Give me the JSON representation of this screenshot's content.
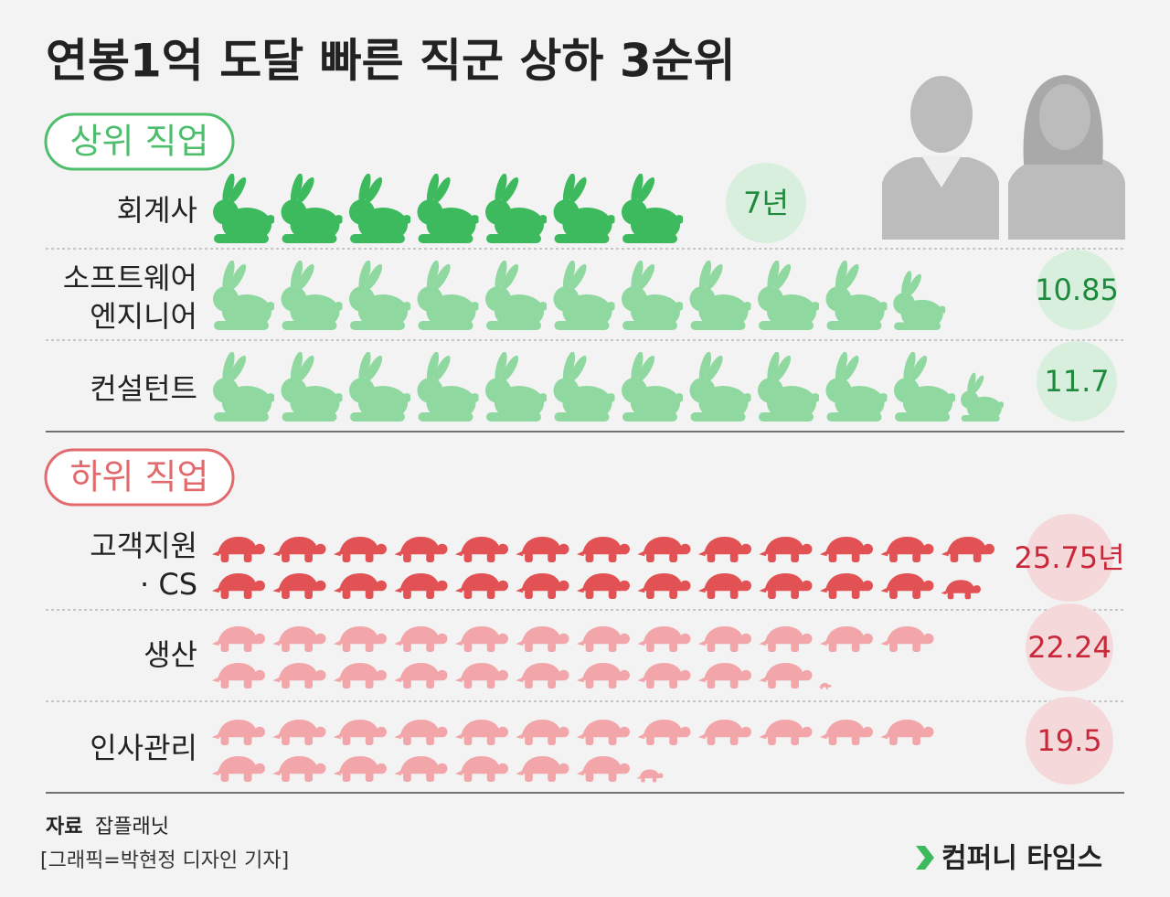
{
  "title": "연봉1억 도달 빠른 직군 상하 3순위",
  "chart_data": [
    {
      "type": "pictogram",
      "label": "상위 직업",
      "icon": "rabbit",
      "color": "#4cbe6c",
      "value_color": "#1f8a3e",
      "circle_color": "#d9efdd",
      "categories": [
        "회계사",
        "소프트웨어\n엔지니어",
        "컨설턴트"
      ],
      "values": [
        7,
        10.85,
        11.7
      ],
      "value_labels": [
        "7년",
        "10.85",
        "11.7"
      ],
      "colors": [
        "#3dba5e",
        "#8fd8a0",
        "#8fd8a0"
      ]
    },
    {
      "type": "pictogram",
      "label": "하위 직업",
      "icon": "turtle",
      "color": "#e26a6d",
      "value_color": "#c8283a",
      "circle_color": "#f5d9da",
      "categories": [
        "고객지원\n· CS",
        "생산",
        "인사관리"
      ],
      "values": [
        25.75,
        22.24,
        19.5
      ],
      "value_labels": [
        "25.75년",
        "22.24",
        "19.5"
      ],
      "colors": [
        "#e25254",
        "#f2a6a9",
        "#f2a6a9"
      ]
    }
  ],
  "source_label": "자료",
  "source": "잡플래닛",
  "credit": "[그래픽=박현정 디자인 기자]",
  "brand": "컴퍼니 타임스"
}
